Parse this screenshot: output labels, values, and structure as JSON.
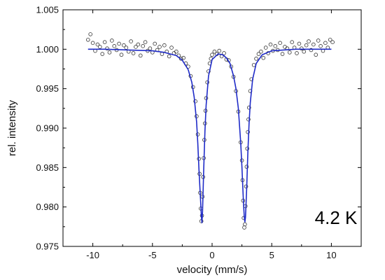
{
  "chart_data": {
    "type": "scatter",
    "title": "",
    "xlabel": "velocity (mm/s)",
    "ylabel": "rel. intensity",
    "annotation": "4.2 K",
    "xlim": [
      -12.5,
      12.5
    ],
    "ylim": [
      0.975,
      1.005
    ],
    "xticks": [
      -10,
      -5,
      0,
      5,
      10
    ],
    "xtick_labels": [
      "-10",
      "-5",
      "0",
      "5",
      "10"
    ],
    "yticks": [
      0.975,
      0.98,
      0.985,
      0.99,
      0.995,
      1.0,
      1.005
    ],
    "ytick_labels": [
      "0.975",
      "0.980",
      "0.985",
      "0.990",
      "0.995",
      "1.000",
      "1.005"
    ],
    "grid": false,
    "colors": {
      "fit": "#1f2bc8",
      "data_marker": "#333333",
      "axes": "#000000"
    },
    "series": [
      {
        "kind": "data",
        "marker": "open-circle",
        "x": [
          -10.4,
          -10.2,
          -10.0,
          -9.8,
          -9.6,
          -9.4,
          -9.2,
          -9.0,
          -8.8,
          -8.6,
          -8.4,
          -8.2,
          -8.0,
          -7.8,
          -7.6,
          -7.4,
          -7.2,
          -7.0,
          -6.8,
          -6.6,
          -6.4,
          -6.2,
          -6.0,
          -5.8,
          -5.6,
          -5.4,
          -5.2,
          -5.0,
          -4.8,
          -4.6,
          -4.4,
          -4.2,
          -4.0,
          -3.8,
          -3.6,
          -3.4,
          -3.2,
          -3.0,
          -2.8,
          -2.6,
          -2.4,
          -2.2,
          -2.0,
          -1.8,
          -1.6,
          -1.4,
          -1.3,
          -1.2,
          -1.1,
          -1.05,
          -1.0,
          -0.95,
          -0.9,
          -0.85,
          -0.8,
          -0.75,
          -0.7,
          -0.65,
          -0.6,
          -0.55,
          -0.5,
          -0.4,
          -0.3,
          -0.2,
          -0.1,
          0.0,
          0.2,
          0.4,
          0.6,
          0.8,
          1.0,
          1.2,
          1.4,
          1.6,
          1.8,
          2.0,
          2.2,
          2.4,
          2.5,
          2.55,
          2.6,
          2.65,
          2.7,
          2.75,
          2.8,
          2.85,
          2.9,
          2.95,
          3.0,
          3.05,
          3.1,
          3.2,
          3.3,
          3.5,
          3.7,
          3.9,
          4.1,
          4.3,
          4.5,
          4.7,
          4.9,
          5.1,
          5.3,
          5.5,
          5.7,
          5.9,
          6.1,
          6.3,
          6.5,
          6.7,
          6.9,
          7.1,
          7.3,
          7.5,
          7.7,
          7.9,
          8.1,
          8.3,
          8.5,
          8.7,
          8.9,
          9.1,
          9.3,
          9.5,
          9.7,
          9.9,
          10.1
        ],
        "y": [
          1.0012,
          1.0019,
          1.0008,
          0.9998,
          1.0006,
          1.0003,
          0.9994,
          1.0009,
          1.0001,
          0.9996,
          1.0011,
          1.0004,
          0.9999,
          1.0007,
          0.9993,
          1.0005,
          1.0002,
          0.9997,
          1.001,
          0.9995,
          1.0003,
          1.0006,
          0.9992,
          1.0004,
          1.0009,
          0.9998,
          1.0001,
          0.9996,
          1.0007,
          0.9999,
          1.0003,
          0.9994,
          1.0005,
          0.9997,
          0.9991,
          1.0002,
          0.9995,
          0.9997,
          0.9992,
          0.9988,
          0.9989,
          0.9982,
          0.9978,
          0.9966,
          0.9952,
          0.9934,
          0.9915,
          0.9892,
          0.9861,
          0.9842,
          0.9818,
          0.9798,
          0.9782,
          0.9789,
          0.9813,
          0.9838,
          0.9862,
          0.9885,
          0.9906,
          0.9922,
          0.9938,
          0.9958,
          0.9972,
          0.9982,
          0.9988,
          0.9993,
          0.9997,
          0.9994,
          0.9998,
          0.9991,
          0.9995,
          0.9987,
          0.9986,
          0.9978,
          0.9965,
          0.9947,
          0.9921,
          0.9882,
          0.9859,
          0.9834,
          0.9808,
          0.9786,
          0.9774,
          0.9778,
          0.9801,
          0.9826,
          0.9851,
          0.9874,
          0.9895,
          0.9911,
          0.9926,
          0.9947,
          0.9962,
          0.998,
          0.9988,
          0.9994,
          0.9997,
          0.9989,
          1.0002,
          0.9995,
          1.0006,
          0.9998,
          1.0004,
          0.9999,
          1.0008,
          0.9994,
          1.0003,
          1.0001,
          0.9996,
          1.0009,
          1.0002,
          0.9995,
          1.0007,
          1.0001,
          0.9997,
          1.0005,
          1.001,
          0.9999,
          1.0006,
          0.9993,
          1.0011,
          1.0004,
          0.9998,
          1.0008,
          1.0002,
          1.0012,
          1.0009
        ]
      },
      {
        "kind": "fit",
        "x": [
          -10.4,
          -9.0,
          -7.0,
          -5.0,
          -4.0,
          -3.0,
          -2.5,
          -2.0,
          -1.7,
          -1.5,
          -1.3,
          -1.2,
          -1.1,
          -1.0,
          -0.95,
          -0.9,
          -0.85,
          -0.8,
          -0.7,
          -0.6,
          -0.5,
          -0.3,
          0.0,
          0.5,
          0.9,
          1.2,
          1.5,
          1.8,
          2.0,
          2.2,
          2.4,
          2.5,
          2.6,
          2.65,
          2.7,
          2.75,
          2.8,
          2.9,
          3.0,
          3.1,
          3.2,
          3.4,
          3.7,
          4.2,
          5.0,
          6.0,
          7.0,
          8.5,
          10.0
        ],
        "y": [
          1.0,
          1.0,
          0.9999,
          0.9998,
          0.9996,
          0.9992,
          0.9986,
          0.9974,
          0.9958,
          0.9939,
          0.9908,
          0.9881,
          0.9847,
          0.9818,
          0.9804,
          0.9788,
          0.978,
          0.9795,
          0.9849,
          0.9896,
          0.9929,
          0.9966,
          0.9987,
          0.9994,
          0.9993,
          0.9989,
          0.9982,
          0.9966,
          0.995,
          0.9925,
          0.9881,
          0.9851,
          0.9816,
          0.98,
          0.9787,
          0.9781,
          0.9787,
          0.9824,
          0.987,
          0.9906,
          0.9932,
          0.9962,
          0.9982,
          0.9993,
          0.9998,
          0.9999,
          1.0,
          1.0,
          1.0
        ]
      }
    ]
  }
}
